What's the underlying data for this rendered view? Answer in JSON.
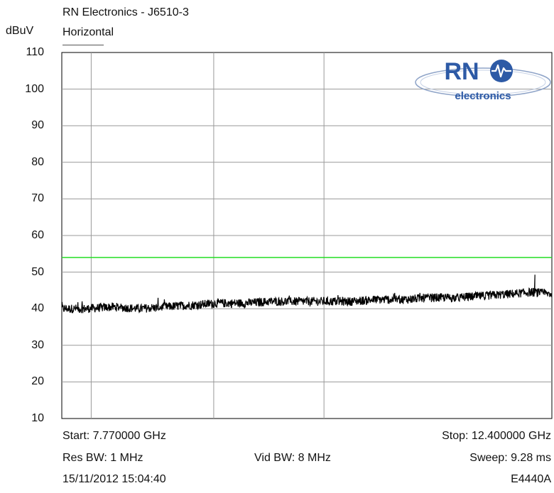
{
  "header": {
    "title": "RN Electronics - J6510-3",
    "y_unit": "dBuV",
    "trace_label": "Horizontal"
  },
  "logo": {
    "text": "RN",
    "subtext": "electronics"
  },
  "footer": {
    "start": "Start: 7.770000 GHz",
    "stop": "Stop: 12.400000 GHz",
    "res_bw": "Res BW: 1 MHz",
    "vid_bw": "Vid BW: 8 MHz",
    "sweep": "Sweep: 9.28 ms",
    "timestamp": "15/11/2012 15:04:40",
    "instrument": "E4440A"
  },
  "colors": {
    "limit_line": "#22dd22",
    "trace": "#000000",
    "grid": "#999999",
    "logo_blue": "#2d5aa6"
  },
  "chart_data": {
    "type": "line",
    "title": "RN Electronics - J6510-3",
    "ylabel": "dBuV",
    "xlim": [
      7.77,
      12.4
    ],
    "ylim": [
      10,
      110
    ],
    "yticks": [
      110,
      100,
      90,
      80,
      70,
      60,
      50,
      40,
      30,
      20,
      10
    ],
    "grid": true,
    "limit_line": 54,
    "series": [
      {
        "name": "Horizontal",
        "x": [
          7.77,
          8.0,
          8.25,
          8.5,
          8.75,
          9.0,
          9.25,
          9.5,
          9.75,
          10.0,
          10.25,
          10.5,
          10.75,
          11.0,
          11.25,
          11.5,
          11.75,
          12.0,
          12.2,
          12.4
        ],
        "y": [
          40,
          40,
          40.5,
          40,
          40.5,
          41,
          41.5,
          41.5,
          42,
          42,
          42,
          42,
          42.5,
          42.5,
          43,
          43,
          43.5,
          44,
          44.5,
          44
        ]
      }
    ]
  }
}
